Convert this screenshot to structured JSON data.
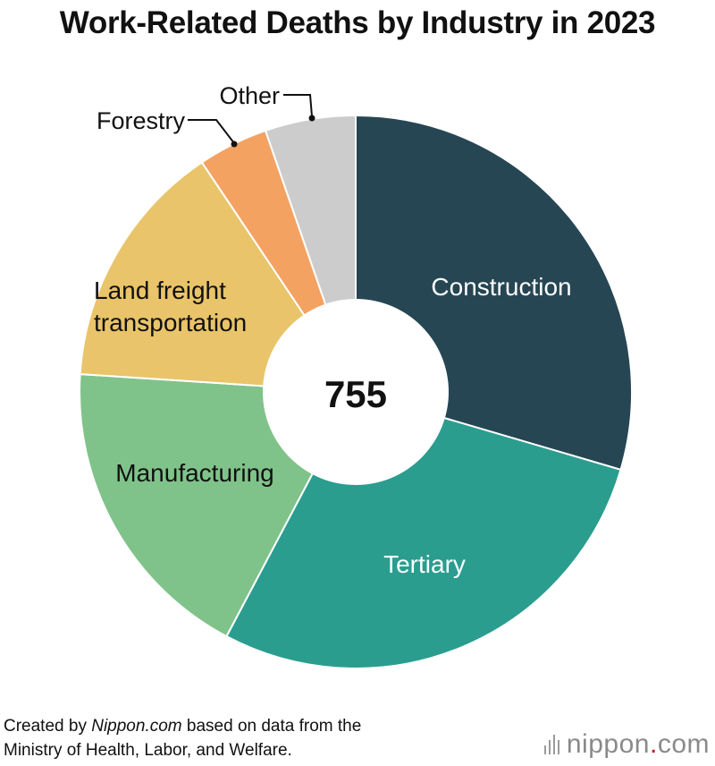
{
  "title": "Work-Related Deaths by Industry in 2023",
  "colors": {
    "Construction": "#264653",
    "Tertiary": "#2a9d8f",
    "Manufacturing": "#80c38a",
    "Land freight transportation": "#e9c46a",
    "Forestry": "#f4a261",
    "Other": "#cccccc",
    "logo_dot": "#c8102e"
  },
  "chart_data": {
    "type": "pie",
    "subtype": "donut",
    "total_label": "755",
    "categories": [
      "Construction",
      "Tertiary",
      "Manufacturing",
      "Land freight transportation",
      "Forestry",
      "Other"
    ],
    "values": [
      223,
      213,
      138,
      110,
      31,
      40
    ],
    "start_angle": "top, clockwise"
  },
  "footer": {
    "credit_prefix": "Created by ",
    "credit_source": "Nippon.com",
    "credit_rest": " based on data from the",
    "credit_line2": "Ministry of Health, Labor, and Welfare.",
    "logo_word": "nippon",
    "logo_dot": ".",
    "logo_suffix": "com"
  }
}
